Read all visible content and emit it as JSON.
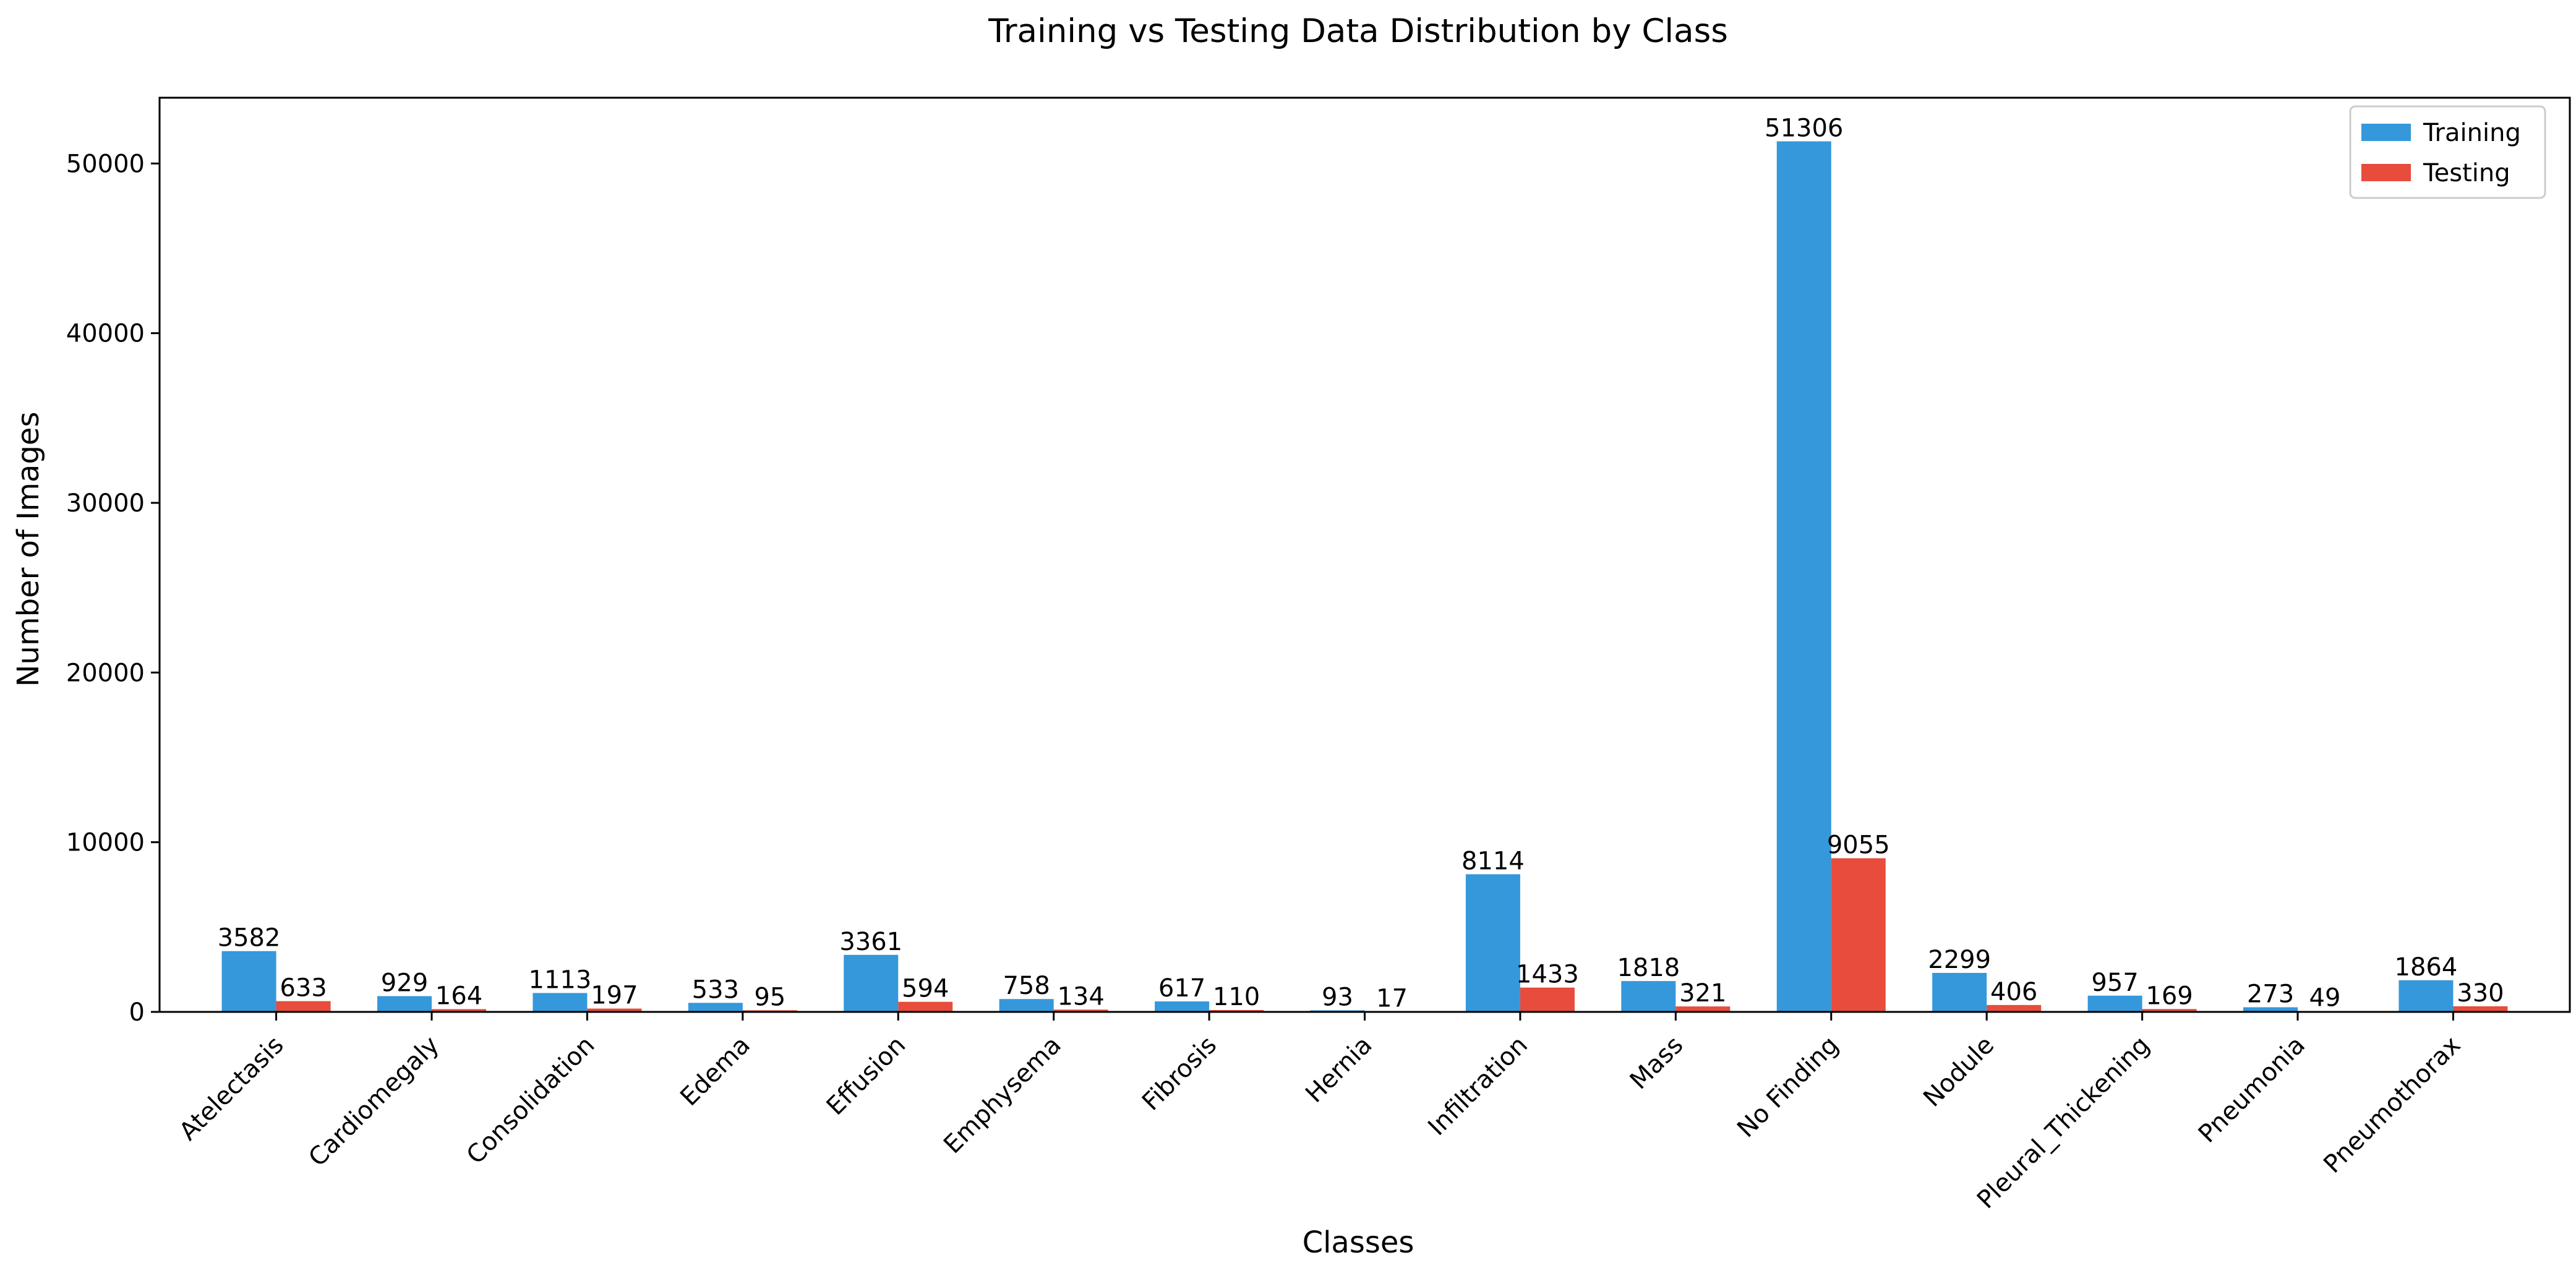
{
  "chart_data": {
    "type": "bar",
    "title": "Training vs Testing Data Distribution by Class",
    "xlabel": "Classes",
    "ylabel": "Number of Images",
    "categories": [
      "Atelectasis",
      "Cardiomegaly",
      "Consolidation",
      "Edema",
      "Effusion",
      "Emphysema",
      "Fibrosis",
      "Hernia",
      "Infiltration",
      "Mass",
      "No Finding",
      "Nodule",
      "Pleural_Thickening",
      "Pneumonia",
      "Pneumothorax"
    ],
    "series": [
      {
        "name": "Training",
        "color": "#3498db",
        "values": [
          3582,
          929,
          1113,
          533,
          3361,
          758,
          617,
          93,
          8114,
          1818,
          51306,
          2299,
          957,
          273,
          1864
        ]
      },
      {
        "name": "Testing",
        "color": "#e74c3c",
        "values": [
          633,
          164,
          197,
          95,
          594,
          134,
          110,
          17,
          1433,
          321,
          9055,
          406,
          169,
          49,
          330
        ]
      }
    ],
    "ylim": [
      0,
      53876
    ],
    "yticks": [
      0,
      10000,
      20000,
      30000,
      40000,
      50000
    ],
    "legend": "top-right",
    "grid": false
  }
}
